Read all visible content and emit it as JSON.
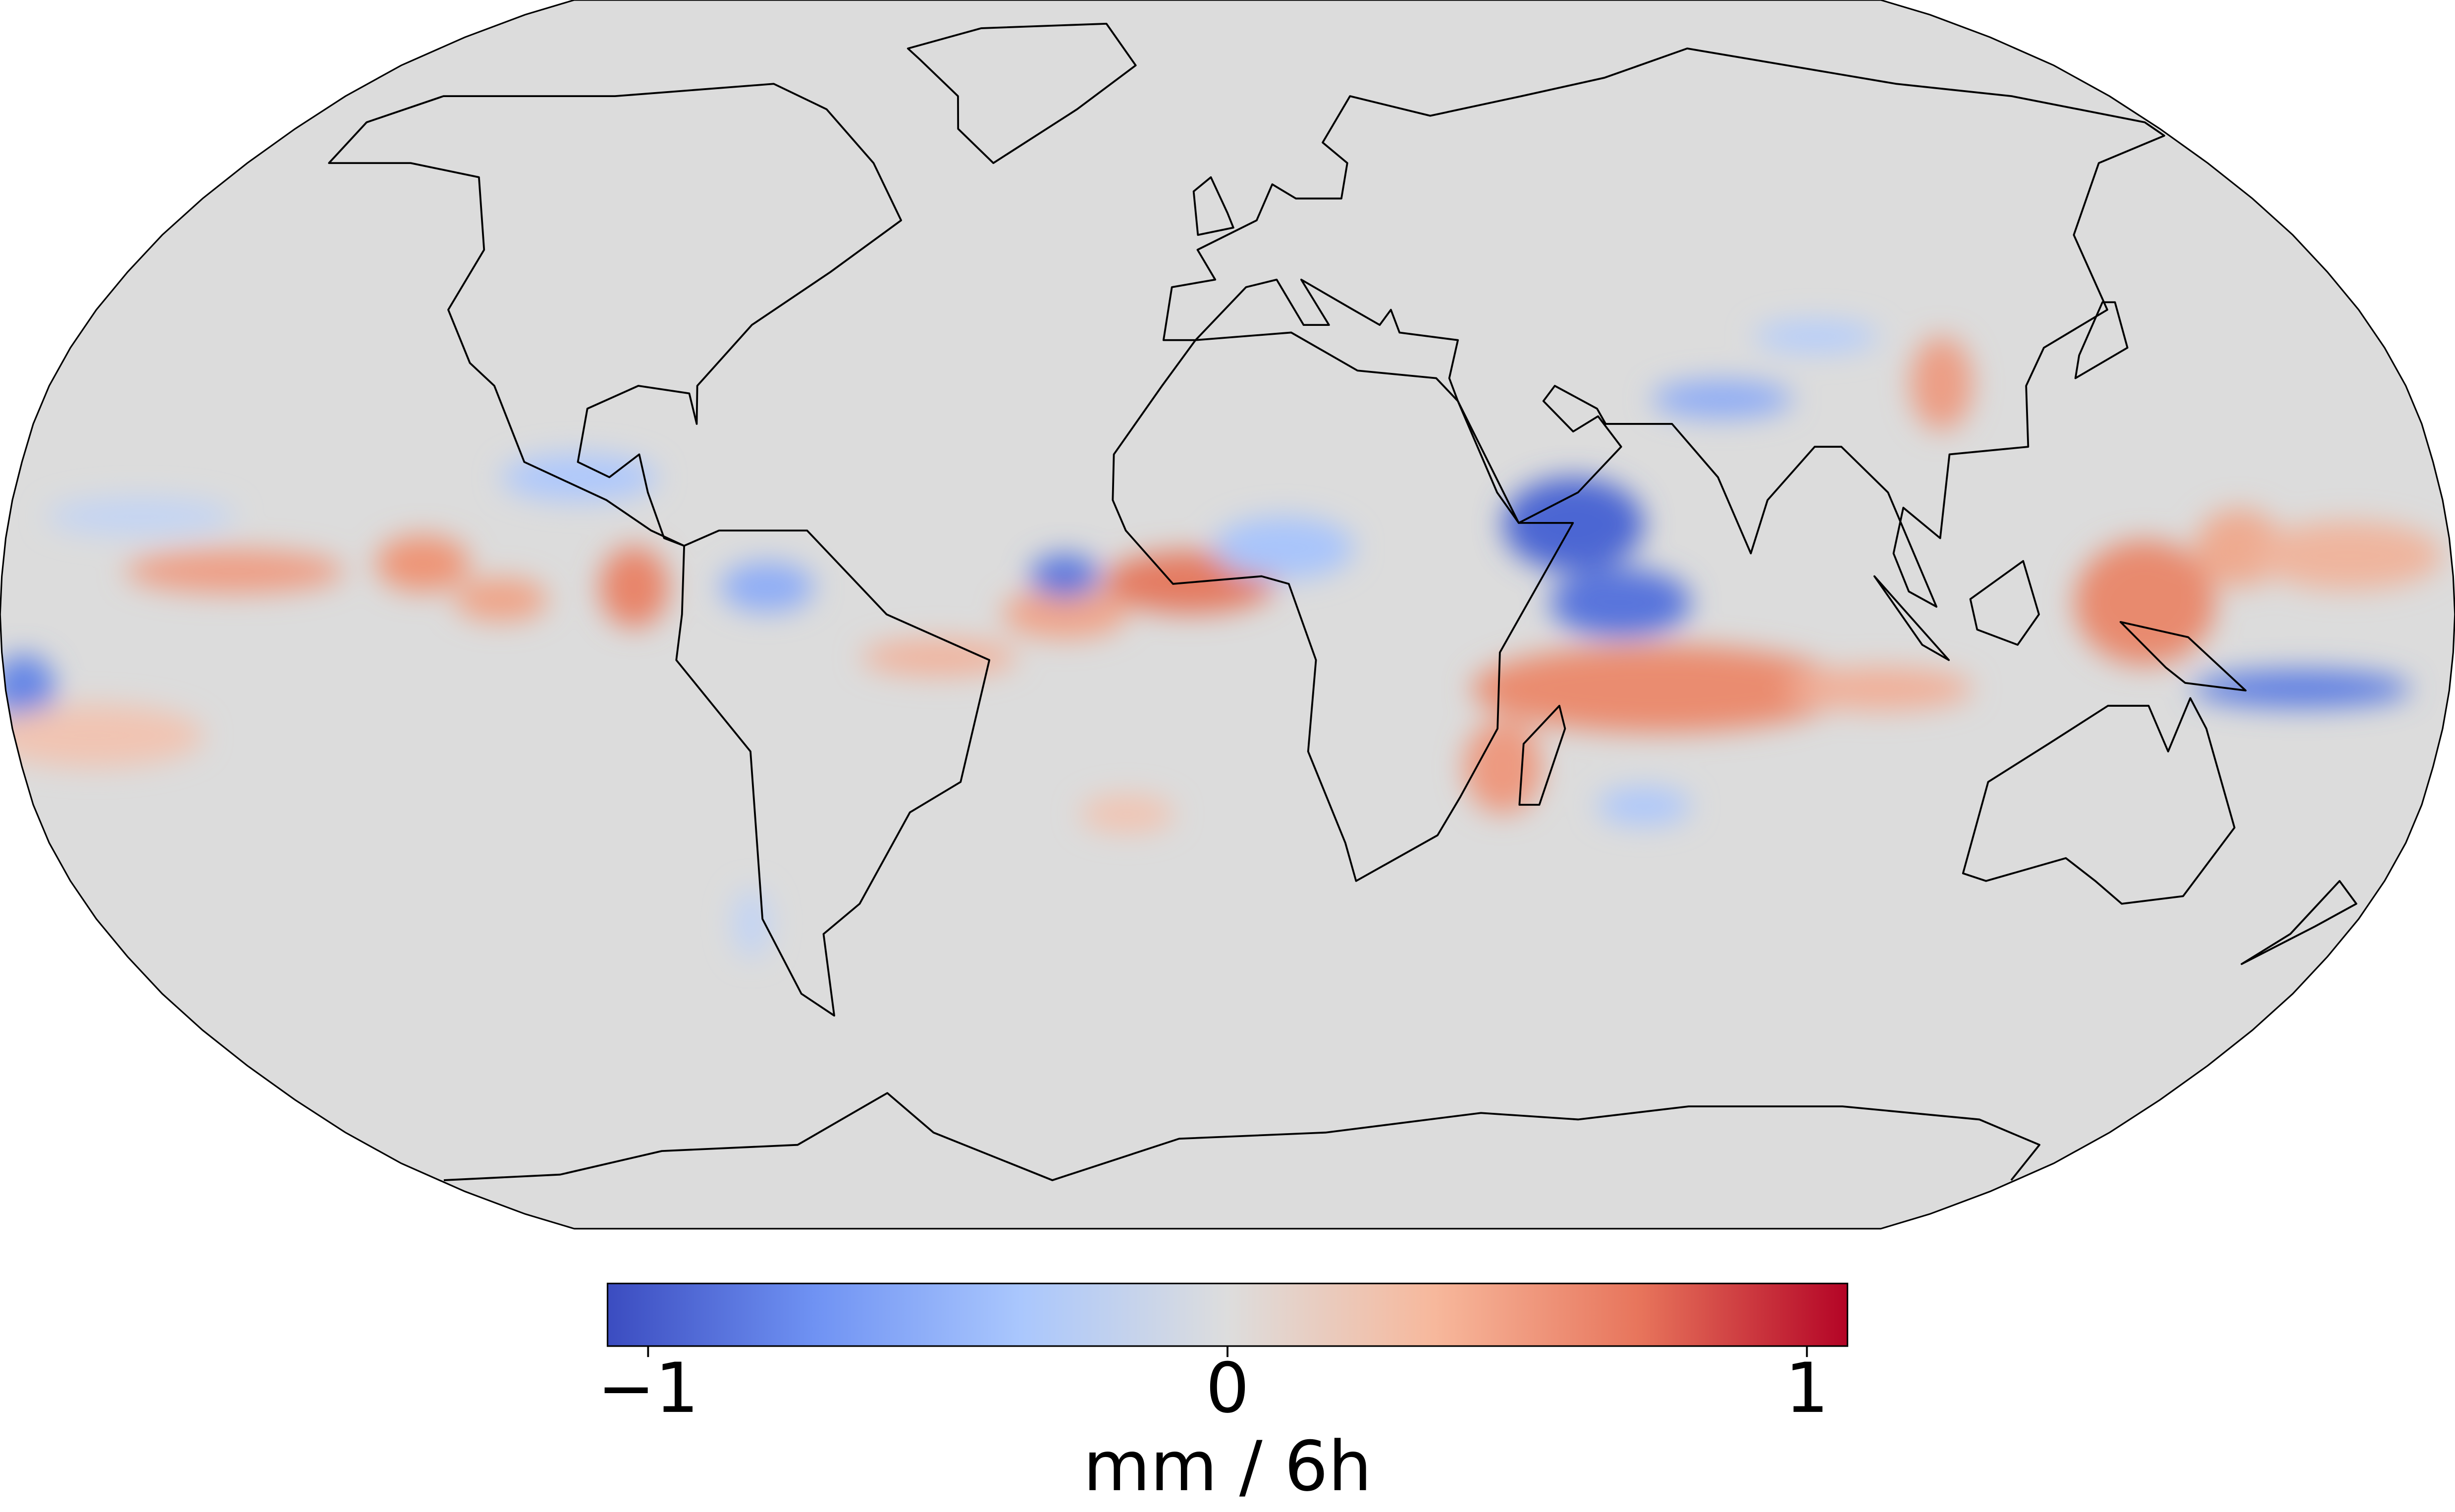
{
  "chart_data": {
    "type": "map",
    "colorbar_label": "mm / 6h",
    "clim": [
      -1.07,
      1.07
    ],
    "cticks": [
      {
        "value": -1,
        "label": "−1"
      },
      0,
      1
    ],
    "colormap": [
      "#3b4cc0",
      "#6f92f3",
      "#aac7fd",
      "#dddddd",
      "#f7b89c",
      "#e7745b",
      "#b40426"
    ]
  }
}
